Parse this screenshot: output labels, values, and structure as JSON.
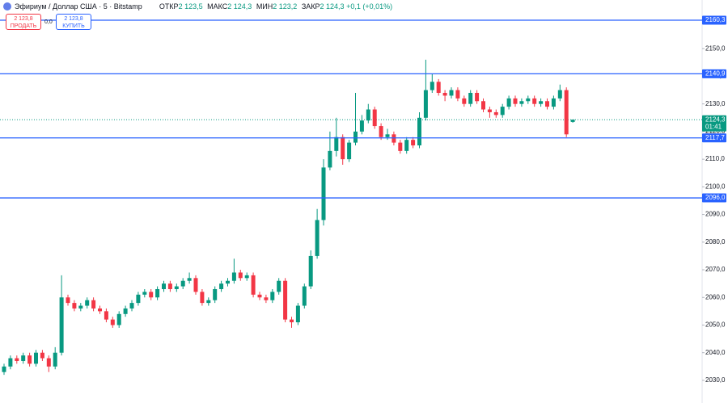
{
  "chart_data": {
    "type": "candlestick",
    "symbol": "Эфириум / Доллар США · 5 · Bitstamp",
    "ohlc": [
      {
        "name": "ОТКР",
        "text": "2 123,5"
      },
      {
        "name": "МАКС",
        "text": "2 124,3"
      },
      {
        "name": "МИН",
        "text": "2 123,2"
      },
      {
        "name": "ЗАКР",
        "text": "2 124,3"
      }
    ],
    "change": "+0,1 (+0,01%)",
    "sell": {
      "price": "2 123,8",
      "label": "ПРОДАТЬ"
    },
    "spread": "0,0",
    "buy": {
      "price": "2 123,8",
      "label": "КУПИТЬ"
    },
    "up_color": "#089981",
    "down_color": "#f23645",
    "level_color": "#2962ff",
    "ylim": [
      2021.8,
      2167.6
    ],
    "yticks": [
      {
        "value": 2030,
        "label": "2030,0"
      },
      {
        "value": 2040,
        "label": "2040,0"
      },
      {
        "value": 2050,
        "label": "2050,0"
      },
      {
        "value": 2060,
        "label": "2060,0"
      },
      {
        "value": 2070,
        "label": "2070,0"
      },
      {
        "value": 2080,
        "label": "2080,0"
      },
      {
        "value": 2090,
        "label": "2090,0"
      },
      {
        "value": 2100,
        "label": "2100,0"
      },
      {
        "value": 2110,
        "label": "2110,0"
      },
      {
        "value": 2120,
        "label": "2120,0"
      },
      {
        "value": 2130,
        "label": "2130,0"
      },
      {
        "value": 2140,
        "label": "2140,0"
      },
      {
        "value": 2150,
        "label": "2150,0"
      },
      {
        "value": 2160,
        "label": "2160,0"
      }
    ],
    "levels": [
      {
        "value": 2160.3,
        "label": "2160,3"
      },
      {
        "value": 2140.9,
        "label": "2140,9"
      },
      {
        "value": 2117.7,
        "label": "2117,7"
      },
      {
        "value": 2096.0,
        "label": "2096,0"
      }
    ],
    "last_price": {
      "value": 2124.3,
      "label": "2124,3",
      "countdown": "01:41"
    },
    "open": [
      2033,
      2035,
      2038,
      2037,
      2039,
      2036,
      2040,
      2038,
      2035,
      2040,
      2060,
      2058,
      2056,
      2057,
      2059,
      2056,
      2055,
      2052,
      2050,
      2054,
      2056,
      2058,
      2061,
      2062,
      2060,
      2063,
      2065,
      2063,
      2064,
      2066,
      2067,
      2062,
      2058,
      2059,
      2063,
      2065,
      2066,
      2069,
      2067,
      2068,
      2061,
      2060,
      2059,
      2062,
      2066,
      2052,
      2051,
      2057,
      2064,
      2075,
      2088,
      2107,
      2113,
      2118,
      2110,
      2116,
      2120,
      2124,
      2128,
      2122,
      2118,
      2119,
      2116,
      2113,
      2117,
      2115,
      2125,
      2135,
      2138,
      2134,
      2133,
      2135,
      2132,
      2130,
      2134,
      2131,
      2128,
      2127,
      2126,
      2129,
      2132,
      2130,
      2131,
      2132,
      2130,
      2131,
      2129,
      2132,
      2135,
      2123.5
    ],
    "high": [
      2036,
      2039,
      2039,
      2040,
      2040,
      2041,
      2041,
      2039,
      2042,
      2068,
      2061,
      2059,
      2058,
      2060,
      2060,
      2057,
      2056,
      2053,
      2055,
      2057,
      2059,
      2062,
      2063,
      2063,
      2064,
      2066,
      2066,
      2065,
      2067,
      2069,
      2068,
      2063,
      2060,
      2064,
      2066,
      2067,
      2074,
      2070,
      2069,
      2069,
      2062,
      2061,
      2063,
      2067,
      2067,
      2053,
      2058,
      2065,
      2077,
      2092,
      2110,
      2120,
      2125,
      2119,
      2117,
      2134,
      2126,
      2130,
      2129,
      2123,
      2121,
      2120,
      2117,
      2118,
      2118,
      2127,
      2146,
      2141,
      2139,
      2135,
      2136,
      2136,
      2133,
      2135,
      2135,
      2132,
      2129,
      2128,
      2130,
      2133,
      2133,
      2132,
      2133,
      2133,
      2132,
      2132,
      2133,
      2137,
      2136,
      2124.3
    ],
    "low": [
      2032,
      2034,
      2036,
      2036,
      2035,
      2035,
      2037,
      2033,
      2034,
      2039,
      2057,
      2055,
      2055,
      2056,
      2055,
      2054,
      2051,
      2049,
      2049,
      2053,
      2055,
      2057,
      2060,
      2059,
      2059,
      2062,
      2062,
      2062,
      2063,
      2065,
      2061,
      2057,
      2057,
      2058,
      2062,
      2064,
      2065,
      2066,
      2066,
      2060,
      2059,
      2058,
      2058,
      2061,
      2051,
      2049,
      2050,
      2056,
      2063,
      2074,
      2086,
      2106,
      2111,
      2108,
      2109,
      2115,
      2119,
      2123,
      2121,
      2117,
      2117,
      2115,
      2112,
      2112,
      2114,
      2114,
      2124,
      2134,
      2133,
      2131,
      2132,
      2131,
      2129,
      2129,
      2130,
      2127,
      2125,
      2125,
      2125,
      2128,
      2129,
      2129,
      2130,
      2129,
      2129,
      2128,
      2128,
      2131,
      2118,
      2123.2
    ],
    "close": [
      2035,
      2038,
      2037,
      2039,
      2036,
      2040,
      2038,
      2035,
      2040,
      2060,
      2058,
      2056,
      2057,
      2059,
      2056,
      2055,
      2052,
      2050,
      2054,
      2056,
      2058,
      2061,
      2062,
      2060,
      2063,
      2065,
      2063,
      2064,
      2066,
      2067,
      2062,
      2058,
      2059,
      2063,
      2065,
      2066,
      2069,
      2067,
      2068,
      2061,
      2060,
      2059,
      2062,
      2066,
      2052,
      2051,
      2057,
      2064,
      2075,
      2088,
      2107,
      2113,
      2118,
      2110,
      2116,
      2120,
      2124,
      2128,
      2122,
      2118,
      2119,
      2116,
      2113,
      2117,
      2115,
      2125,
      2135,
      2138,
      2134,
      2133,
      2135,
      2132,
      2130,
      2134,
      2131,
      2128,
      2127,
      2126,
      2129,
      2132,
      2130,
      2131,
      2132,
      2130,
      2131,
      2129,
      2132,
      2135,
      2119,
      2124.3
    ]
  }
}
